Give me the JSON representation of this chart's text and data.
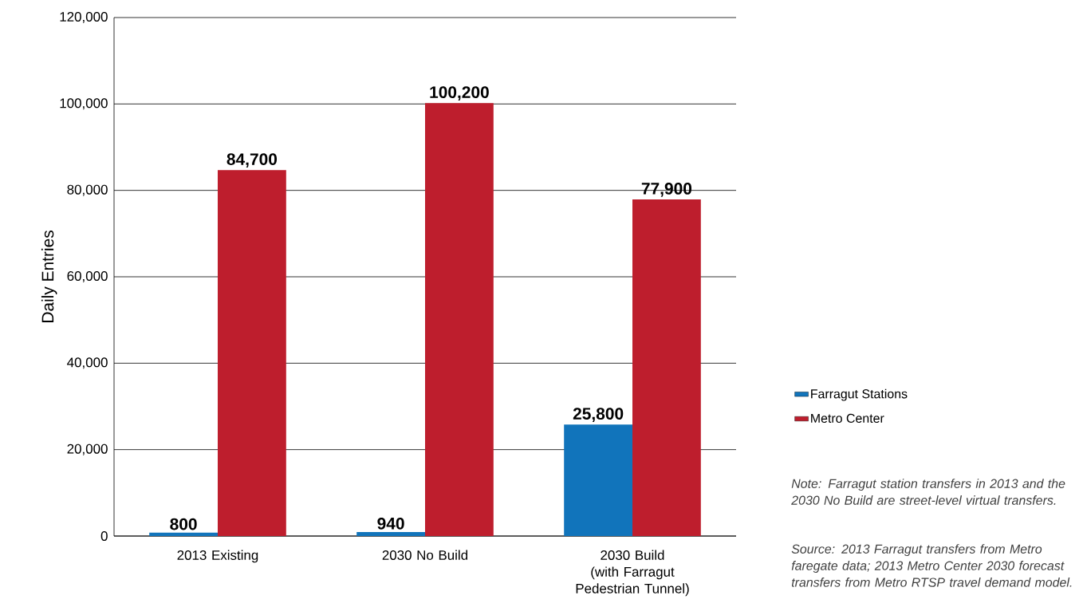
{
  "chart_data": {
    "type": "bar",
    "ylabel": "Daily Entries",
    "categories": [
      "2013 Existing",
      "2030 No Build",
      "2030 Build (with Farragut Pedestrian Tunnel)"
    ],
    "series": [
      {
        "name": "Farragut Stations",
        "color": "#1174bb",
        "values": [
          800,
          940,
          25800
        ],
        "value_labels": [
          "800",
          "940",
          "25,800"
        ]
      },
      {
        "name": "Metro Center",
        "color": "#be1e2d",
        "values": [
          84700,
          100200,
          77900
        ],
        "value_labels": [
          "84,700",
          "100,200",
          "77,900"
        ]
      }
    ],
    "ylim": [
      0,
      120000
    ],
    "yticks": [
      0,
      {
        "value": 20000,
        "label": "20,000"
      },
      {
        "value": 40000,
        "label": "40,000"
      },
      {
        "value": 60000,
        "label": "60,000"
      },
      {
        "value": 80000,
        "label": "80,000"
      },
      {
        "value": 100000,
        "label": "100,000"
      },
      {
        "value": 120000,
        "label": "120,000"
      }
    ],
    "grid": "y",
    "legend": "right",
    "annotations": [
      "Note: Farragut station transfers in 2013 and the 2030 No Build are street-level virtual transfers.",
      "Source: 2013 Farragut transfers from Metro faregate data; 2013 Metro Center 2030 forecast transfers from Metro RTSP travel demand model."
    ]
  }
}
